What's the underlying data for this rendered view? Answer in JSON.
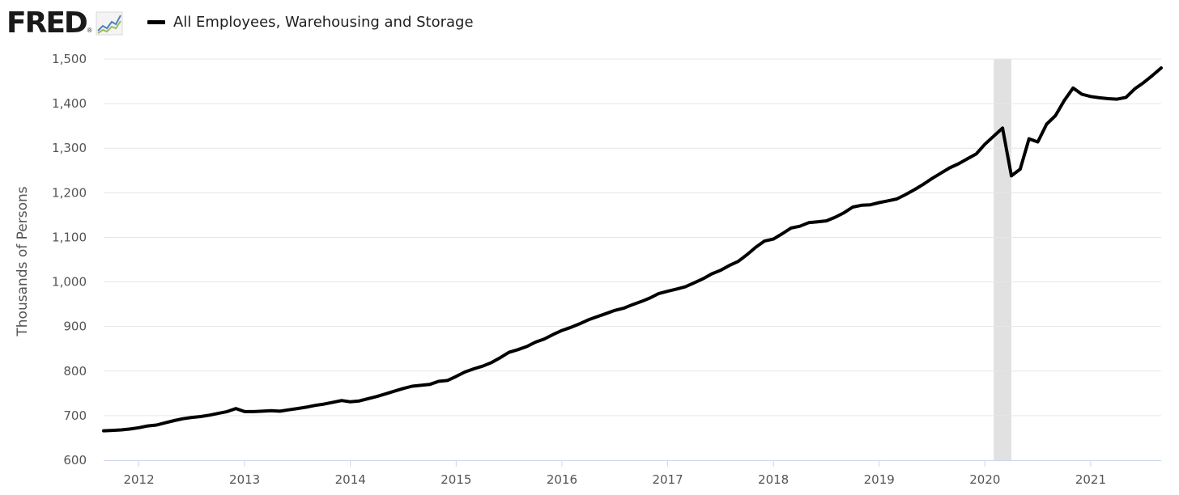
{
  "header": {
    "logo_text": "FRED",
    "logo_mark": "®"
  },
  "legend": {
    "label": "All Employees, Warehousing and Storage",
    "swatch_color": "#000000"
  },
  "icons": {
    "logo_chart": "line-chart-icon"
  },
  "chart_data": {
    "type": "line",
    "title": "",
    "xlabel": "",
    "ylabel": "Thousands of Persons",
    "ylim": [
      600,
      1500
    ],
    "xlim": [
      "2011-09",
      "2021-09"
    ],
    "yticks": [
      600,
      700,
      800,
      900,
      1000,
      1100,
      1200,
      1300,
      1400,
      1500
    ],
    "ytick_labels": [
      "600",
      "700",
      "800",
      "900",
      "1,000",
      "1,100",
      "1,200",
      "1,300",
      "1,400",
      "1,500"
    ],
    "xticks": [
      "2012-01",
      "2013-01",
      "2014-01",
      "2015-01",
      "2016-01",
      "2017-01",
      "2018-01",
      "2019-01",
      "2020-01",
      "2021-01"
    ],
    "xtick_labels": [
      "2012",
      "2013",
      "2014",
      "2015",
      "2016",
      "2017",
      "2018",
      "2019",
      "2020",
      "2021"
    ],
    "grid": true,
    "line_color": "#000000",
    "recession_color": "#e1e1e1",
    "recession": {
      "start": "2020-02",
      "end": "2020-04"
    },
    "series": [
      {
        "name": "All Employees, Warehousing and Storage",
        "x": [
          "2011-09",
          "2011-10",
          "2011-11",
          "2011-12",
          "2012-01",
          "2012-02",
          "2012-03",
          "2012-04",
          "2012-05",
          "2012-06",
          "2012-07",
          "2012-08",
          "2012-09",
          "2012-10",
          "2012-11",
          "2012-12",
          "2013-01",
          "2013-02",
          "2013-03",
          "2013-04",
          "2013-05",
          "2013-06",
          "2013-07",
          "2013-08",
          "2013-09",
          "2013-10",
          "2013-11",
          "2013-12",
          "2014-01",
          "2014-02",
          "2014-03",
          "2014-04",
          "2014-05",
          "2014-06",
          "2014-07",
          "2014-08",
          "2014-09",
          "2014-10",
          "2014-11",
          "2014-12",
          "2015-01",
          "2015-02",
          "2015-03",
          "2015-04",
          "2015-05",
          "2015-06",
          "2015-07",
          "2015-08",
          "2015-09",
          "2015-10",
          "2015-11",
          "2015-12",
          "2016-01",
          "2016-02",
          "2016-03",
          "2016-04",
          "2016-05",
          "2016-06",
          "2016-07",
          "2016-08",
          "2016-09",
          "2016-10",
          "2016-11",
          "2016-12",
          "2017-01",
          "2017-02",
          "2017-03",
          "2017-04",
          "2017-05",
          "2017-06",
          "2017-07",
          "2017-08",
          "2017-09",
          "2017-10",
          "2017-11",
          "2017-12",
          "2018-01",
          "2018-02",
          "2018-03",
          "2018-04",
          "2018-05",
          "2018-06",
          "2018-07",
          "2018-08",
          "2018-09",
          "2018-10",
          "2018-11",
          "2018-12",
          "2019-01",
          "2019-02",
          "2019-03",
          "2019-04",
          "2019-05",
          "2019-06",
          "2019-07",
          "2019-08",
          "2019-09",
          "2019-10",
          "2019-11",
          "2019-12",
          "2020-01",
          "2020-02",
          "2020-03",
          "2020-04",
          "2020-05",
          "2020-06",
          "2020-07",
          "2020-08",
          "2020-09",
          "2020-10",
          "2020-11",
          "2020-12",
          "2021-01",
          "2021-02",
          "2021-03",
          "2021-04",
          "2021-05",
          "2021-06",
          "2021-07",
          "2021-08",
          "2021-09"
        ],
        "values": [
          666,
          667,
          668,
          670,
          673,
          677,
          679,
          684,
          689,
          693,
          696,
          698,
          701,
          705,
          709,
          716,
          709,
          709,
          710,
          711,
          710,
          713,
          716,
          719,
          723,
          726,
          730,
          734,
          731,
          733,
          738,
          743,
          749,
          755,
          761,
          766,
          768,
          770,
          777,
          779,
          788,
          798,
          805,
          811,
          819,
          830,
          842,
          848,
          855,
          865,
          872,
          882,
          891,
          898,
          906,
          915,
          922,
          929,
          936,
          941,
          949,
          956,
          964,
          974,
          979,
          984,
          989,
          998,
          1007,
          1018,
          1026,
          1037,
          1046,
          1061,
          1078,
          1092,
          1096,
          1108,
          1121,
          1125,
          1133,
          1135,
          1137,
          1145,
          1155,
          1168,
          1172,
          1173,
          1178,
          1182,
          1186,
          1196,
          1207,
          1219,
          1232,
          1244,
          1256,
          1265,
          1276,
          1287,
          1309,
          1327,
          1345,
          1238,
          1253,
          1321,
          1314,
          1354,
          1373,
          1407,
          1435,
          1421,
          1416,
          1413,
          1411,
          1410,
          1414,
          1433,
          1447,
          1463,
          1480
        ]
      }
    ]
  }
}
